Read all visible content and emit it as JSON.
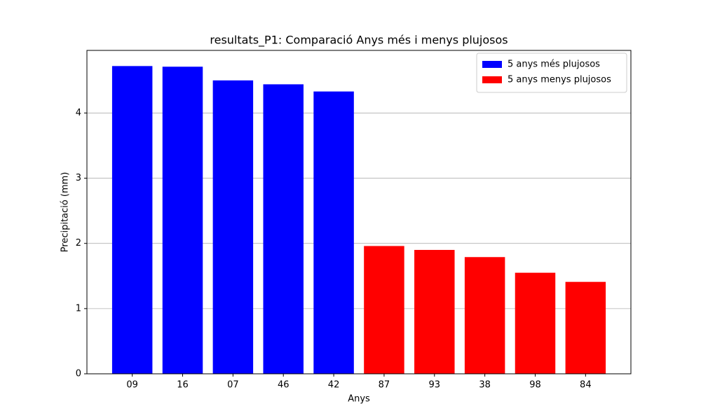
{
  "chart_data": {
    "type": "bar",
    "title": "resultats_P1: Comparació Anys més i menys plujosos",
    "x_label": "Anys",
    "y_label": "Precipitació (mm)",
    "categories": [
      "09",
      "16",
      "07",
      "46",
      "42",
      "87",
      "93",
      "38",
      "98",
      "84"
    ],
    "series": [
      {
        "name": "5 anys més plujosos",
        "color": "#0000ff",
        "values": [
          4.72,
          4.71,
          4.5,
          4.44,
          4.33,
          null,
          null,
          null,
          null,
          null
        ]
      },
      {
        "name": "5 anys menys plujosos",
        "color": "#ff0000",
        "values": [
          null,
          null,
          null,
          null,
          null,
          1.96,
          1.9,
          1.79,
          1.55,
          1.41
        ]
      }
    ],
    "ylim": [
      0,
      4.96
    ],
    "yticks": [
      0,
      1,
      2,
      3,
      4
    ],
    "grid": "y",
    "legend": "upper right"
  }
}
